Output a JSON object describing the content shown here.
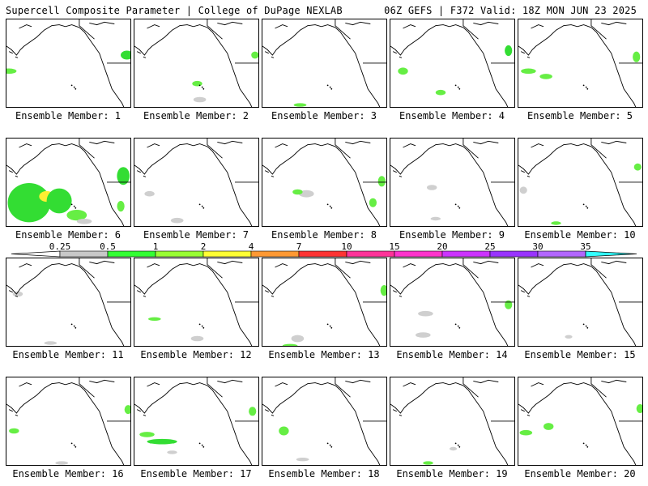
{
  "header": {
    "title_left": "Supercell Composite Parameter | College of DuPage NEXLAB",
    "title_right": "06Z GEFS | F372 Valid: 18Z MON JUN 23 2025"
  },
  "label_prefix": "Ensemble Member:",
  "members": [
    {
      "id": "1",
      "blobs": [
        [
          "g",
          0.96,
          0.4,
          0.05,
          0.05
        ],
        [
          "l",
          0.02,
          0.58,
          0.06,
          0.03
        ]
      ]
    },
    {
      "id": "2",
      "blobs": [
        [
          "l",
          0.5,
          0.72,
          0.04,
          0.03
        ],
        [
          "s",
          0.52,
          0.9,
          0.05,
          0.03
        ],
        [
          "l",
          0.96,
          0.4,
          0.03,
          0.04
        ]
      ]
    },
    {
      "id": "3",
      "blobs": [
        [
          "l",
          0.3,
          0.96,
          0.05,
          0.02
        ]
      ]
    },
    {
      "id": "4",
      "blobs": [
        [
          "l",
          0.1,
          0.58,
          0.04,
          0.04
        ],
        [
          "l",
          0.4,
          0.82,
          0.04,
          0.03
        ],
        [
          "g",
          0.94,
          0.35,
          0.03,
          0.06
        ]
      ]
    },
    {
      "id": "5",
      "blobs": [
        [
          "l",
          0.08,
          0.58,
          0.06,
          0.03
        ],
        [
          "l",
          0.22,
          0.64,
          0.05,
          0.03
        ],
        [
          "l",
          0.94,
          0.42,
          0.03,
          0.06
        ]
      ]
    },
    {
      "id": "6",
      "blobs": [
        [
          "g",
          0.18,
          0.72,
          0.17,
          0.22
        ],
        [
          "y",
          0.32,
          0.65,
          0.06,
          0.06
        ],
        [
          "g",
          0.42,
          0.7,
          0.1,
          0.14
        ],
        [
          "l",
          0.56,
          0.86,
          0.08,
          0.06
        ],
        [
          "g",
          0.93,
          0.42,
          0.05,
          0.1
        ],
        [
          "l",
          0.91,
          0.76,
          0.03,
          0.06
        ],
        [
          "s",
          0.62,
          0.93,
          0.06,
          0.03
        ]
      ]
    },
    {
      "id": "7",
      "blobs": [
        [
          "s",
          0.12,
          0.62,
          0.04,
          0.03
        ],
        [
          "s",
          0.34,
          0.92,
          0.05,
          0.03
        ]
      ]
    },
    {
      "id": "8",
      "blobs": [
        [
          "s",
          0.35,
          0.62,
          0.06,
          0.04
        ],
        [
          "l",
          0.28,
          0.6,
          0.04,
          0.03
        ],
        [
          "l",
          0.95,
          0.48,
          0.03,
          0.06
        ],
        [
          "l",
          0.88,
          0.72,
          0.03,
          0.05
        ]
      ]
    },
    {
      "id": "9",
      "blobs": [
        [
          "s",
          0.33,
          0.55,
          0.04,
          0.03
        ],
        [
          "s",
          0.36,
          0.9,
          0.04,
          0.02
        ]
      ]
    },
    {
      "id": "10",
      "blobs": [
        [
          "l",
          0.95,
          0.32,
          0.03,
          0.04
        ],
        [
          "l",
          0.3,
          0.95,
          0.04,
          0.02
        ],
        [
          "s",
          0.04,
          0.58,
          0.03,
          0.04
        ]
      ]
    },
    {
      "id": "11",
      "blobs": [
        [
          "s",
          0.09,
          0.4,
          0.04,
          0.03
        ],
        [
          "s",
          0.35,
          0.95,
          0.05,
          0.02
        ]
      ]
    },
    {
      "id": "12",
      "blobs": [
        [
          "l",
          0.16,
          0.68,
          0.05,
          0.02
        ],
        [
          "s",
          0.5,
          0.9,
          0.05,
          0.03
        ]
      ]
    },
    {
      "id": "13",
      "blobs": [
        [
          "l",
          0.97,
          0.36,
          0.03,
          0.06
        ],
        [
          "s",
          0.28,
          0.9,
          0.05,
          0.04
        ],
        [
          "l",
          0.22,
          0.98,
          0.06,
          0.02
        ]
      ]
    },
    {
      "id": "14",
      "blobs": [
        [
          "s",
          0.28,
          0.62,
          0.06,
          0.03
        ],
        [
          "s",
          0.26,
          0.86,
          0.06,
          0.03
        ],
        [
          "l",
          0.94,
          0.52,
          0.03,
          0.05
        ]
      ]
    },
    {
      "id": "15",
      "blobs": [
        [
          "s",
          0.4,
          0.88,
          0.03,
          0.02
        ]
      ]
    },
    {
      "id": "16",
      "blobs": [
        [
          "l",
          0.06,
          0.6,
          0.04,
          0.03
        ],
        [
          "l",
          0.97,
          0.36,
          0.03,
          0.05
        ],
        [
          "s",
          0.44,
          0.96,
          0.05,
          0.02
        ]
      ]
    },
    {
      "id": "17",
      "blobs": [
        [
          "l",
          0.1,
          0.64,
          0.06,
          0.03
        ],
        [
          "g",
          0.22,
          0.72,
          0.12,
          0.03
        ],
        [
          "s",
          0.3,
          0.84,
          0.04,
          0.02
        ],
        [
          "l",
          0.94,
          0.38,
          0.03,
          0.05
        ]
      ]
    },
    {
      "id": "18",
      "blobs": [
        [
          "l",
          0.17,
          0.6,
          0.04,
          0.05
        ],
        [
          "s",
          0.32,
          0.92,
          0.05,
          0.02
        ]
      ]
    },
    {
      "id": "19",
      "blobs": [
        [
          "s",
          0.5,
          0.8,
          0.03,
          0.02
        ],
        [
          "l",
          0.3,
          0.96,
          0.04,
          0.02
        ]
      ]
    },
    {
      "id": "20",
      "blobs": [
        [
          "l",
          0.06,
          0.62,
          0.05,
          0.03
        ],
        [
          "l",
          0.24,
          0.55,
          0.04,
          0.04
        ],
        [
          "l",
          0.97,
          0.35,
          0.03,
          0.05
        ]
      ]
    }
  ],
  "colorbar": {
    "ticks": [
      "0.25",
      "0.5",
      "1",
      "2",
      "4",
      "7",
      "10",
      "15",
      "20",
      "25",
      "30",
      "35"
    ],
    "colors": [
      "#c8c8c8",
      "#33ff33",
      "#99ff33",
      "#ffff33",
      "#ff9933",
      "#ff3333",
      "#ff3399",
      "#ff33cc",
      "#cc33ff",
      "#9933ff",
      "#b266ff",
      "#33ffff"
    ]
  },
  "fill_colors": {
    "s": "#cfcfcf",
    "l": "#66ee44",
    "g": "#33dd33",
    "y": "#ffee33"
  }
}
